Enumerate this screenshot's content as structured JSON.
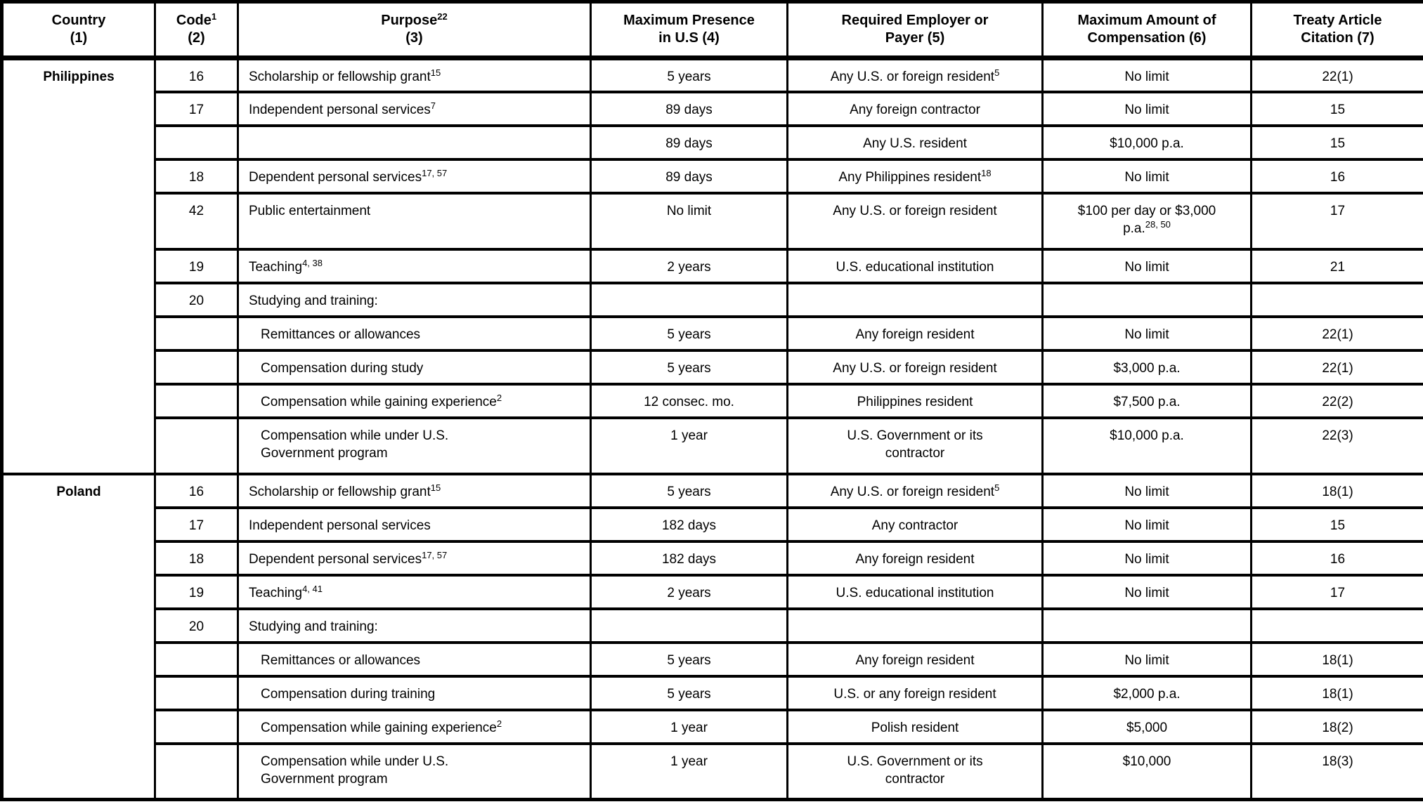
{
  "document": {
    "header": {
      "country": {
        "line1": "Country",
        "line2": "(1)"
      },
      "code": {
        "line1": "Code",
        "sup": "1",
        "line2": "(2)"
      },
      "purpose": {
        "line1": "Purpose",
        "sup": "22",
        "line2": "(3)"
      },
      "presence": {
        "line1": "Maximum Presence",
        "line2": "in U.S (4)"
      },
      "payer": {
        "line1": "Required Employer or",
        "line2": "Payer (5)"
      },
      "compensation": {
        "line1": "Maximum Amount of",
        "line2": "Compensation (6)"
      },
      "treaty": {
        "line1": "Treaty Article",
        "line2": "Citation (7)"
      }
    },
    "sections": [
      {
        "country": "Philippines",
        "rows": [
          {
            "code": "16",
            "purpose": {
              "text": "Scholarship or fellowship grant",
              "sup": "15",
              "indent": false
            },
            "presence": "5 years",
            "payer": {
              "text": "Any U.S. or foreign resident",
              "sup": "5"
            },
            "compensation": {
              "text": "No limit",
              "sup": ""
            },
            "treaty": "22(1)",
            "tall": false
          },
          {
            "code": "17",
            "purpose": {
              "text": "Independent personal services",
              "sup": "7",
              "indent": false
            },
            "presence": "89 days",
            "payer": {
              "text": "Any foreign contractor",
              "sup": ""
            },
            "compensation": {
              "text": "No limit",
              "sup": ""
            },
            "treaty": "15",
            "tall": false
          },
          {
            "code": "",
            "purpose": {
              "text": "",
              "sup": "",
              "indent": false
            },
            "presence": "89 days",
            "payer": {
              "text": "Any U.S. resident",
              "sup": ""
            },
            "compensation": {
              "text": "$10,000 p.a.",
              "sup": ""
            },
            "treaty": "15",
            "tall": false
          },
          {
            "code": "18",
            "purpose": {
              "text": "Dependent personal services",
              "sup": "17, 57",
              "indent": false
            },
            "presence": "89 days",
            "payer": {
              "text": "Any Philippines resident",
              "sup": "18"
            },
            "compensation": {
              "text": "No limit",
              "sup": ""
            },
            "treaty": "16",
            "tall": false
          },
          {
            "code": "42",
            "purpose": {
              "text": "Public entertainment",
              "sup": "",
              "indent": false
            },
            "presence": "No limit",
            "payer": {
              "text": "Any U.S. or foreign resident",
              "sup": ""
            },
            "compensation": {
              "text": "$100 per day or $3,000\np.a.",
              "sup": "28, 50"
            },
            "treaty": "17",
            "tall": true
          },
          {
            "code": "19",
            "purpose": {
              "text": "Teaching",
              "sup": "4, 38",
              "indent": false
            },
            "presence": "2 years",
            "payer": {
              "text": "U.S. educational institution",
              "sup": ""
            },
            "compensation": {
              "text": "No limit",
              "sup": ""
            },
            "treaty": "21",
            "tall": false
          },
          {
            "code": "20",
            "purpose": {
              "text": "Studying and training:",
              "sup": "",
              "indent": false
            },
            "presence": "",
            "payer": {
              "text": "",
              "sup": ""
            },
            "compensation": {
              "text": "",
              "sup": ""
            },
            "treaty": "",
            "tall": false
          },
          {
            "code": "",
            "purpose": {
              "text": "Remittances or allowances",
              "sup": "",
              "indent": true
            },
            "presence": "5 years",
            "payer": {
              "text": "Any foreign resident",
              "sup": ""
            },
            "compensation": {
              "text": "No limit",
              "sup": ""
            },
            "treaty": "22(1)",
            "tall": false
          },
          {
            "code": "",
            "purpose": {
              "text": "Compensation during study",
              "sup": "",
              "indent": true
            },
            "presence": "5 years",
            "payer": {
              "text": "Any U.S. or foreign resident",
              "sup": ""
            },
            "compensation": {
              "text": "$3,000 p.a.",
              "sup": ""
            },
            "treaty": "22(1)",
            "tall": false
          },
          {
            "code": "",
            "purpose": {
              "text": "Compensation while gaining experience",
              "sup": "2",
              "indent": true
            },
            "presence": "12 consec. mo.",
            "payer": {
              "text": "Philippines resident",
              "sup": ""
            },
            "compensation": {
              "text": "$7,500 p.a.",
              "sup": ""
            },
            "treaty": "22(2)",
            "tall": false
          },
          {
            "code": "",
            "purpose": {
              "text": "Compensation while under U.S.\nGovernment program",
              "sup": "",
              "indent": true
            },
            "presence": "1 year",
            "payer": {
              "text": "U.S. Government or its\ncontractor",
              "sup": ""
            },
            "compensation": {
              "text": "$10,000 p.a.",
              "sup": ""
            },
            "treaty": "22(3)",
            "tall": true
          }
        ]
      },
      {
        "country": "Poland",
        "rows": [
          {
            "code": "16",
            "purpose": {
              "text": "Scholarship or fellowship grant",
              "sup": "15",
              "indent": false
            },
            "presence": "5 years",
            "payer": {
              "text": "Any U.S. or foreign resident",
              "sup": "5"
            },
            "compensation": {
              "text": "No limit",
              "sup": ""
            },
            "treaty": "18(1)",
            "tall": false
          },
          {
            "code": "17",
            "purpose": {
              "text": "Independent personal services",
              "sup": "",
              "indent": false
            },
            "presence": "182 days",
            "payer": {
              "text": "Any contractor",
              "sup": ""
            },
            "compensation": {
              "text": "No limit",
              "sup": ""
            },
            "treaty": "15",
            "tall": false
          },
          {
            "code": "18",
            "purpose": {
              "text": "Dependent personal services",
              "sup": "17, 57",
              "indent": false
            },
            "presence": "182 days",
            "payer": {
              "text": "Any foreign resident",
              "sup": ""
            },
            "compensation": {
              "text": "No limit",
              "sup": ""
            },
            "treaty": "16",
            "tall": false
          },
          {
            "code": "19",
            "purpose": {
              "text": "Teaching",
              "sup": "4, 41",
              "indent": false
            },
            "presence": "2 years",
            "payer": {
              "text": "U.S. educational institution",
              "sup": ""
            },
            "compensation": {
              "text": "No limit",
              "sup": ""
            },
            "treaty": "17",
            "tall": false
          },
          {
            "code": "20",
            "purpose": {
              "text": "Studying and training:",
              "sup": "",
              "indent": false
            },
            "presence": "",
            "payer": {
              "text": "",
              "sup": ""
            },
            "compensation": {
              "text": "",
              "sup": ""
            },
            "treaty": "",
            "tall": false
          },
          {
            "code": "",
            "purpose": {
              "text": "Remittances or allowances",
              "sup": "",
              "indent": true
            },
            "presence": "5 years",
            "payer": {
              "text": "Any foreign resident",
              "sup": ""
            },
            "compensation": {
              "text": "No limit",
              "sup": ""
            },
            "treaty": "18(1)",
            "tall": false
          },
          {
            "code": "",
            "purpose": {
              "text": "Compensation during training",
              "sup": "",
              "indent": true
            },
            "presence": "5 years",
            "payer": {
              "text": "U.S. or any foreign resident",
              "sup": ""
            },
            "compensation": {
              "text": "$2,000 p.a.",
              "sup": ""
            },
            "treaty": "18(1)",
            "tall": false
          },
          {
            "code": "",
            "purpose": {
              "text": "Compensation while gaining experience",
              "sup": "2",
              "indent": true
            },
            "presence": "1 year",
            "payer": {
              "text": "Polish resident",
              "sup": ""
            },
            "compensation": {
              "text": "$5,000",
              "sup": ""
            },
            "treaty": "18(2)",
            "tall": false
          },
          {
            "code": "",
            "purpose": {
              "text": "Compensation while under U.S.\nGovernment program",
              "sup": "",
              "indent": true
            },
            "presence": "1 year",
            "payer": {
              "text": "U.S. Government or its\ncontractor",
              "sup": ""
            },
            "compensation": {
              "text": "$10,000",
              "sup": ""
            },
            "treaty": "18(3)",
            "tall": true
          }
        ]
      }
    ]
  }
}
